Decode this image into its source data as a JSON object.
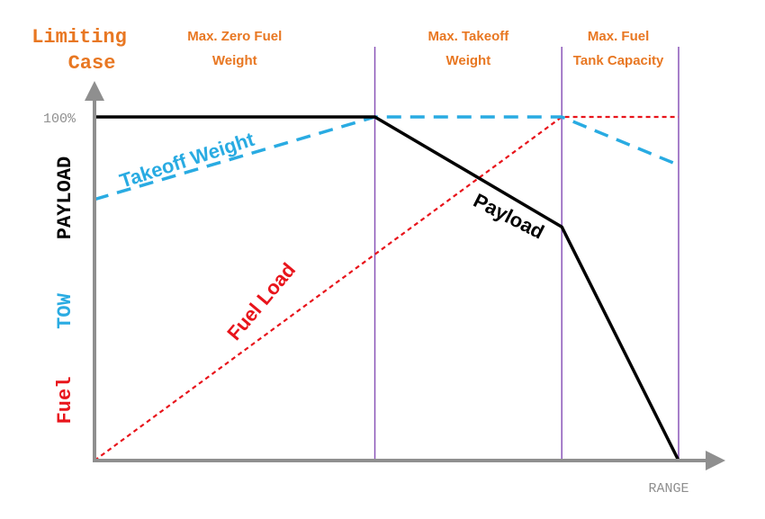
{
  "chart_data": {
    "type": "line",
    "corner_title_line1": "Limiting",
    "corner_title_line2": "Case",
    "regions": [
      {
        "line1": "Max. Zero Fuel",
        "line2": "Weight",
        "x_start": 0,
        "x_end": 48
      },
      {
        "line1": "Max. Takeoff",
        "line2": "Weight",
        "x_start": 48,
        "x_end": 80
      },
      {
        "line1": "Max. Fuel",
        "line2": "Tank Capacity",
        "x_start": 80,
        "x_end": 100
      }
    ],
    "boundaries_x": [
      48,
      80,
      100
    ],
    "xlabel": "RANGE",
    "ylabels": [
      {
        "text": "PAYLOAD",
        "color": "#000000"
      },
      {
        "text": "TOW",
        "color": "#29abe2"
      },
      {
        "text": "Fuel",
        "color": "#e8141b"
      }
    ],
    "ytick": "100%",
    "xlim": [
      0,
      108
    ],
    "ylim": [
      0,
      100
    ],
    "region_color": "#e87722",
    "series": [
      {
        "name": "Payload",
        "color": "#000000",
        "dash": "solid",
        "x": [
          0,
          48,
          80,
          100
        ],
        "y": [
          100,
          100,
          68,
          0
        ]
      },
      {
        "name": "Takeoff Weight",
        "color": "#29abe2",
        "dash": "long",
        "x": [
          0,
          48,
          80,
          100
        ],
        "y": [
          76,
          100,
          100,
          86
        ]
      },
      {
        "name": "Fuel Load",
        "color": "#e8141b",
        "dash": "short",
        "x": [
          0,
          80,
          100
        ],
        "y": [
          0,
          100,
          100
        ]
      }
    ]
  }
}
